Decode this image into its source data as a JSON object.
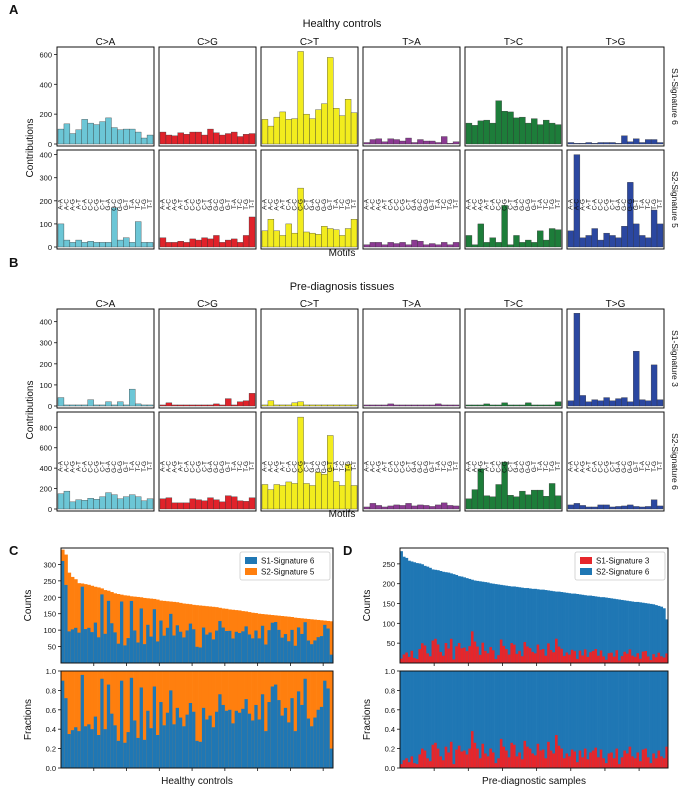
{
  "colors": {
    "ca": "#6cc6d6",
    "cg": "#e0222a",
    "ct": "#f2ec1e",
    "ta": "#8b3a92",
    "tc": "#1d7d3a",
    "tg": "#2b47a0",
    "blue": "#1f77b4",
    "orange": "#ff7f0e",
    "red": "#e6262b",
    "blue2": "#1f77b4"
  },
  "motif_labels": [
    "A-A",
    "A-C",
    "A-G",
    "A-T",
    "C-A",
    "C-C",
    "C-G",
    "C-T",
    "G-A",
    "G-C",
    "G-G",
    "G-T",
    "T-A",
    "T-C",
    "T-G",
    "T-T"
  ],
  "chart_data": [
    {
      "panel": "A",
      "type": "bar",
      "title": "Healthy controls",
      "xlabel": "Motifs",
      "ylabel": "Contributions",
      "categories": [
        "C>A",
        "C>G",
        "C>T",
        "T>A",
        "T>C",
        "T>G"
      ],
      "rows": [
        {
          "name": "S1-Signature 6",
          "ylim": [
            0,
            650
          ],
          "yticks": [
            0,
            200,
            400,
            600
          ],
          "values": {
            "C>A": [
              100,
              135,
              70,
              95,
              165,
              140,
              130,
              150,
              175,
              110,
              95,
              100,
              100,
              80,
              40,
              60
            ],
            "C>G": [
              80,
              60,
              55,
              75,
              65,
              80,
              80,
              60,
              100,
              75,
              60,
              70,
              80,
              50,
              65,
              70
            ],
            "C>T": [
              165,
              120,
              180,
              215,
              165,
              170,
              620,
              200,
              170,
              230,
              270,
              580,
              240,
              190,
              300,
              210
            ],
            "T>A": [
              10,
              30,
              35,
              15,
              35,
              30,
              20,
              40,
              10,
              30,
              20,
              20,
              10,
              50,
              5,
              15
            ],
            "T>C": [
              140,
              125,
              155,
              160,
              140,
              290,
              220,
              215,
              175,
              180,
              140,
              170,
              130,
              160,
              140,
              130
            ],
            "T>G": [
              10,
              5,
              5,
              10,
              5,
              10,
              10,
              10,
              5,
              55,
              15,
              35,
              10,
              30,
              30,
              10
            ]
          }
        },
        {
          "name": "S2-Signature 5",
          "ylim": [
            0,
            420
          ],
          "yticks": [
            0,
            100,
            200,
            300,
            400
          ],
          "values": {
            "C>A": [
              100,
              30,
              20,
              30,
              20,
              25,
              20,
              20,
              20,
              170,
              30,
              40,
              20,
              110,
              20,
              20
            ],
            "C>G": [
              40,
              20,
              20,
              25,
              20,
              35,
              30,
              40,
              35,
              50,
              20,
              30,
              35,
              20,
              50,
              130
            ],
            "C>T": [
              70,
              120,
              70,
              50,
              100,
              60,
              255,
              65,
              60,
              55,
              90,
              80,
              75,
              50,
              80,
              120
            ],
            "T>A": [
              10,
              20,
              20,
              10,
              20,
              15,
              20,
              10,
              30,
              25,
              10,
              15,
              10,
              20,
              10,
              20
            ],
            "T>C": [
              50,
              10,
              100,
              20,
              40,
              20,
              180,
              10,
              50,
              20,
              30,
              20,
              70,
              30,
              80,
              75
            ],
            "T>G": [
              70,
              400,
              40,
              50,
              80,
              30,
              60,
              50,
              40,
              90,
              280,
              100,
              50,
              40,
              160,
              100
            ]
          }
        }
      ]
    },
    {
      "panel": "B",
      "type": "bar",
      "title": "Pre-diagnosis tissues",
      "xlabel": "Motifs",
      "ylabel": "Contributions",
      "categories": [
        "C>A",
        "C>G",
        "C>T",
        "T>A",
        "T>C",
        "T>G"
      ],
      "rows": [
        {
          "name": "S1-Signature 3",
          "ylim": [
            0,
            460
          ],
          "yticks": [
            0,
            100,
            200,
            300,
            400
          ],
          "values": {
            "C>A": [
              40,
              5,
              5,
              5,
              5,
              30,
              5,
              5,
              20,
              5,
              20,
              5,
              80,
              10,
              5,
              5
            ],
            "C>G": [
              5,
              15,
              5,
              5,
              5,
              5,
              5,
              5,
              5,
              10,
              5,
              35,
              5,
              20,
              25,
              60
            ],
            "C>T": [
              5,
              25,
              5,
              5,
              5,
              15,
              20,
              5,
              5,
              5,
              5,
              5,
              5,
              5,
              5,
              5
            ],
            "T>A": [
              5,
              5,
              5,
              5,
              10,
              5,
              5,
              5,
              5,
              5,
              5,
              5,
              10,
              5,
              5,
              5
            ],
            "T>C": [
              5,
              5,
              5,
              10,
              5,
              5,
              15,
              5,
              5,
              5,
              15,
              5,
              5,
              5,
              5,
              20
            ],
            "T>G": [
              25,
              440,
              50,
              20,
              30,
              25,
              40,
              25,
              35,
              40,
              20,
              260,
              30,
              25,
              195,
              30
            ]
          }
        },
        {
          "name": "S2-Signature 6",
          "ylim": [
            0,
            950
          ],
          "yticks": [
            0,
            200,
            400,
            600,
            800
          ],
          "values": {
            "C>A": [
              150,
              175,
              70,
              90,
              85,
              105,
              95,
              120,
              160,
              140,
              100,
              120,
              140,
              120,
              80,
              100
            ],
            "C>G": [
              100,
              110,
              60,
              60,
              60,
              100,
              90,
              80,
              110,
              90,
              70,
              130,
              120,
              80,
              75,
              110
            ],
            "C>T": [
              240,
              190,
              240,
              230,
              265,
              250,
              900,
              250,
              230,
              360,
              340,
              720,
              270,
              230,
              440,
              230
            ],
            "T>A": [
              20,
              55,
              35,
              20,
              30,
              40,
              35,
              55,
              30,
              40,
              35,
              25,
              40,
              60,
              35,
              30
            ],
            "T>C": [
              100,
              190,
              395,
              130,
              120,
              240,
              460,
              135,
              120,
              175,
              140,
              185,
              185,
              125,
              250,
              130
            ],
            "T>G": [
              40,
              55,
              35,
              20,
              20,
              40,
              40,
              20,
              25,
              30,
              40,
              25,
              20,
              25,
              90,
              30
            ]
          }
        }
      ]
    },
    {
      "panel": "C",
      "type": "stacked-bar",
      "xlabel": "Healthy controls",
      "legend": [
        "S1-Signature 6",
        "S2-Signature 5"
      ],
      "counts_ylabel": "Counts",
      "counts_ylim": [
        0,
        350
      ],
      "counts_yticks": [
        50,
        100,
        150,
        200,
        250,
        300
      ],
      "fractions_ylabel": "Fractions",
      "fractions_ylim": [
        0,
        1
      ],
      "fractions_yticks": [
        0.0,
        0.2,
        0.4,
        0.6,
        0.8,
        1.0
      ],
      "totals": [
        345,
        330,
        275,
        262,
        255,
        243,
        242,
        240,
        238,
        235,
        232,
        230,
        227,
        222,
        220,
        216,
        212,
        210,
        208,
        206,
        205,
        203,
        202,
        201,
        200,
        198,
        197,
        196,
        195,
        193,
        190,
        189,
        188,
        187,
        186,
        185,
        183,
        181,
        180,
        179,
        177,
        176,
        175,
        174,
        173,
        172,
        171,
        170,
        168,
        166,
        165,
        163,
        162,
        161,
        160,
        158,
        157,
        155,
        153,
        152,
        150,
        149,
        148,
        147,
        146,
        145,
        144,
        143,
        142,
        141,
        140,
        138,
        137,
        136,
        135,
        134,
        133,
        132,
        131,
        130,
        129,
        128,
        127
      ],
      "s1_fraction": [
        0.9,
        0.72,
        0.35,
        0.39,
        0.42,
        0.38,
        0.96,
        0.43,
        0.45,
        0.4,
        0.53,
        0.34,
        0.92,
        0.4,
        0.86,
        0.56,
        0.44,
        0.28,
        0.9,
        0.26,
        0.37,
        0.93,
        0.49,
        0.31,
        0.83,
        0.29,
        0.59,
        0.41,
        0.84,
        0.34,
        0.68,
        0.44,
        0.57,
        0.8,
        0.45,
        0.62,
        0.52,
        0.43,
        0.55,
        0.67,
        0.58,
        0.28,
        0.27,
        0.62,
        0.5,
        0.54,
        0.42,
        0.58,
        0.76,
        0.65,
        0.59,
        0.6,
        0.46,
        0.59,
        0.57,
        0.61,
        0.71,
        0.56,
        0.49,
        0.65,
        0.5,
        0.76,
        0.38,
        0.68,
        0.84,
        0.86,
        0.7,
        0.54,
        0.62,
        0.47,
        0.72,
        0.38,
        0.79,
        0.65,
        0.92,
        0.51,
        0.43,
        0.52,
        0.6,
        0.63,
        0.9,
        0.82,
        0.2
      ]
    },
    {
      "panel": "D",
      "type": "stacked-bar",
      "xlabel": "Pre-diagnostic samples",
      "legend": [
        "S1-Signature 3",
        "S2-Signature 6"
      ],
      "counts_ylabel": "Counts",
      "counts_ylim": [
        0,
        290
      ],
      "counts_yticks": [
        50,
        100,
        150,
        200,
        250
      ],
      "fractions_ylabel": "Fractions",
      "fractions_ylim": [
        0,
        1
      ],
      "fractions_yticks": [
        0.0,
        0.2,
        0.4,
        0.6,
        0.8,
        1.0
      ],
      "totals": [
        282,
        268,
        265,
        258,
        256,
        254,
        252,
        251,
        249,
        245,
        243,
        240,
        236,
        235,
        234,
        232,
        230,
        229,
        228,
        226,
        224,
        222,
        219,
        218,
        216,
        214,
        212,
        210,
        208,
        207,
        206,
        205,
        204,
        203,
        201,
        200,
        199,
        198,
        197,
        196,
        195,
        194,
        193,
        193,
        192,
        191,
        190,
        189,
        189,
        188,
        187,
        187,
        186,
        185,
        185,
        184,
        183,
        182,
        181,
        180,
        180,
        179,
        178,
        177,
        176,
        175,
        175,
        174,
        173,
        172,
        171,
        170,
        170,
        169,
        168,
        167,
        166,
        166,
        165,
        164,
        163,
        162,
        161,
        160,
        159,
        158,
        157,
        156,
        155,
        154,
        154,
        153,
        152,
        151,
        150,
        149,
        148,
        146,
        144,
        142,
        138,
        110
      ],
      "s1_fraction": [
        0.04,
        0.08,
        0.1,
        0.06,
        0.12,
        0.05,
        0.04,
        0.14,
        0.2,
        0.18,
        0.1,
        0.07,
        0.24,
        0.26,
        0.2,
        0.12,
        0.08,
        0.22,
        0.16,
        0.27,
        0.04,
        0.19,
        0.23,
        0.17,
        0.18,
        0.14,
        0.2,
        0.38,
        0.26,
        0.2,
        0.1,
        0.25,
        0.15,
        0.12,
        0.2,
        0.16,
        0.05,
        0.1,
        0.3,
        0.22,
        0.18,
        0.11,
        0.26,
        0.24,
        0.12,
        0.16,
        0.09,
        0.28,
        0.22,
        0.2,
        0.15,
        0.13,
        0.25,
        0.18,
        0.19,
        0.1,
        0.27,
        0.18,
        0.15,
        0.34,
        0.23,
        0.2,
        0.1,
        0.15,
        0.12,
        0.19,
        0.17,
        0.06,
        0.18,
        0.11,
        0.2,
        0.09,
        0.16,
        0.18,
        0.21,
        0.11,
        0.19,
        0.1,
        0.05,
        0.15,
        0.16,
        0.1,
        0.2,
        0.04,
        0.11,
        0.18,
        0.15,
        0.22,
        0.12,
        0.1,
        0.16,
        0.07,
        0.19,
        0.2,
        0.11,
        0.05,
        0.15,
        0.1,
        0.18,
        0.12,
        0.1,
        0.22
      ]
    }
  ]
}
